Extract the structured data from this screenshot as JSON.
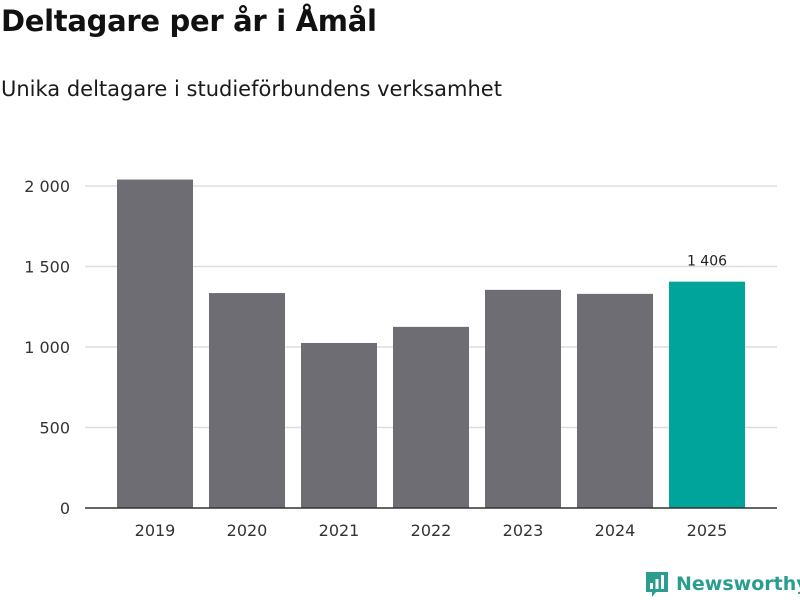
{
  "title": "Deltagare per år i Åmål",
  "subtitle": "Unika deltagare i studieförbundens verksamhet",
  "brand": {
    "name": "Newsworthy",
    "icon": "newsworthy-logo-icon",
    "color": "#2a9d8f"
  },
  "colors": {
    "default_bar": "#6e6d74",
    "highlight_bar": "#00a49a",
    "grid": "#dddddd",
    "axis": "#333333"
  },
  "chart_data": {
    "type": "bar",
    "categories": [
      "2019",
      "2020",
      "2021",
      "2022",
      "2023",
      "2024",
      "2025"
    ],
    "values": [
      2040,
      1335,
      1025,
      1125,
      1355,
      1330,
      1406
    ],
    "highlight_index": 6,
    "data_labels": [
      {
        "index": 6,
        "text": "1 406"
      }
    ],
    "y_ticks": [
      {
        "value": 0,
        "label": "0"
      },
      {
        "value": 500,
        "label": "500"
      },
      {
        "value": 1000,
        "label": "1 000"
      },
      {
        "value": 1500,
        "label": "1 500"
      },
      {
        "value": 2000,
        "label": "2 000"
      }
    ],
    "ylim": [
      0,
      2000
    ],
    "grid": true,
    "legend": "none"
  }
}
